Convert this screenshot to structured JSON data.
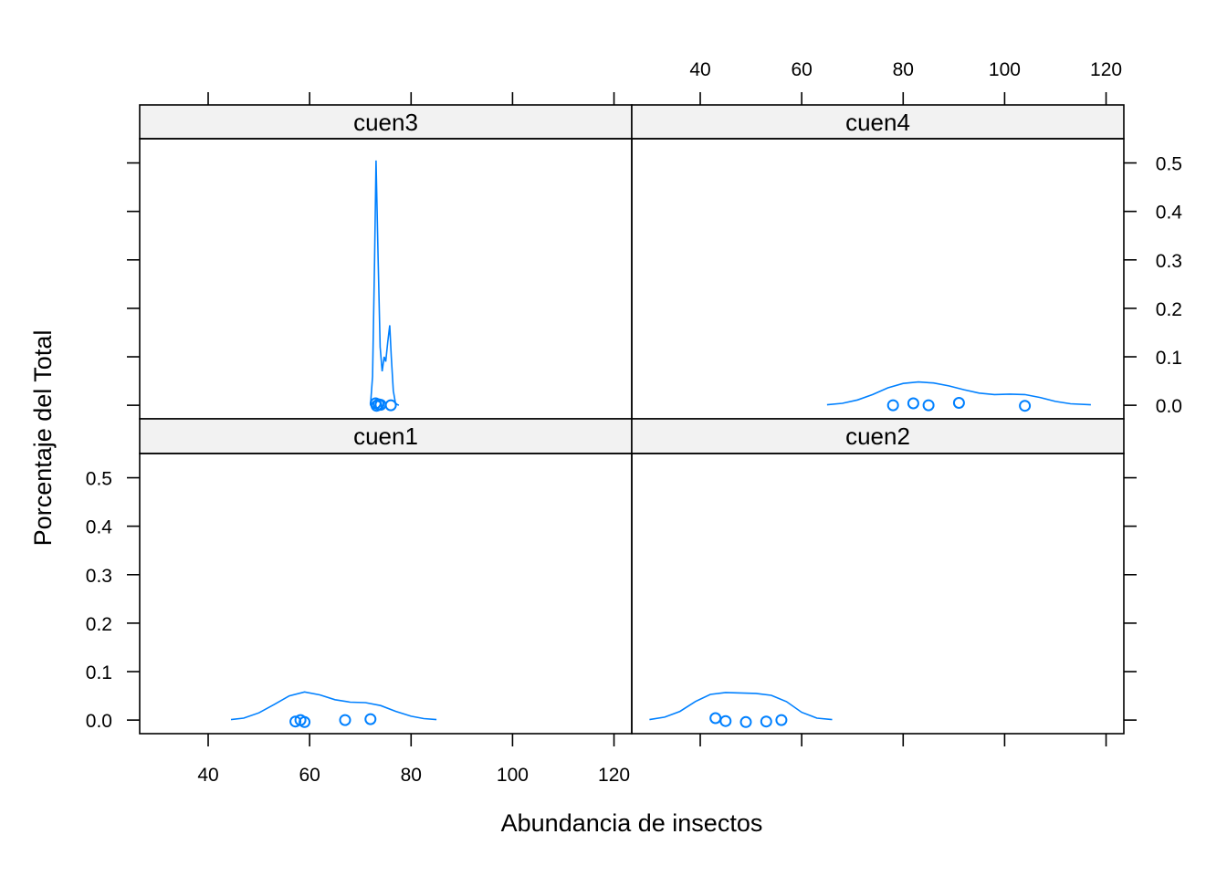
{
  "chart_data": {
    "type": "density",
    "xlabel": "Abundancia de insectos",
    "ylabel": "Porcentaje del Total",
    "xlim": [
      26.5,
      123.5
    ],
    "ylim": [
      -0.028,
      0.55
    ],
    "x_ticks": [
      40,
      60,
      80,
      100,
      120
    ],
    "y_ticks": [
      0.0,
      0.1,
      0.2,
      0.3,
      0.4,
      0.5
    ],
    "line_color": "#0080ff",
    "panels": [
      {
        "name": "cuen3",
        "row": "top",
        "col": "left",
        "density": {
          "x": [
            72.0,
            72.4,
            72.8,
            73.1,
            73.5,
            73.9,
            74.3,
            74.7,
            75.0,
            75.4,
            75.8,
            76.1,
            76.5,
            76.9,
            77.2,
            77.6
          ],
          "y": [
            0.0,
            0.06,
            0.3,
            0.505,
            0.3,
            0.12,
            0.07,
            0.1,
            0.09,
            0.13,
            0.165,
            0.1,
            0.03,
            0.005,
            0.002,
            0.0
          ]
        },
        "points": {
          "x": [
            73.0,
            73.2,
            73.6,
            74.0,
            76.0
          ],
          "y": [
            0.004,
            -0.001,
            0.002,
            0.001,
            0.0
          ]
        }
      },
      {
        "name": "cuen4",
        "row": "top",
        "col": "right",
        "density": {
          "x": [
            65,
            68,
            71,
            74,
            77,
            80,
            83,
            86,
            89,
            92,
            95,
            98,
            101,
            104,
            107,
            110,
            113,
            117
          ],
          "y": [
            0.001,
            0.004,
            0.011,
            0.022,
            0.036,
            0.045,
            0.048,
            0.046,
            0.04,
            0.032,
            0.025,
            0.022,
            0.023,
            0.022,
            0.016,
            0.008,
            0.003,
            0.001
          ]
        },
        "points": {
          "x": [
            78,
            82,
            85,
            91,
            104
          ],
          "y": [
            0.0,
            0.004,
            0.0,
            0.005,
            -0.001
          ]
        }
      },
      {
        "name": "cuen1",
        "row": "bottom",
        "col": "left",
        "density": {
          "x": [
            44.5,
            47,
            50,
            53,
            56,
            59,
            62,
            65,
            68,
            71,
            74,
            77,
            80,
            82.5,
            85
          ],
          "y": [
            0.001,
            0.004,
            0.015,
            0.032,
            0.05,
            0.058,
            0.052,
            0.042,
            0.037,
            0.036,
            0.03,
            0.018,
            0.008,
            0.003,
            0.001
          ]
        },
        "points": {
          "x": [
            57.2,
            58.2,
            59.0,
            67.0,
            72.0
          ],
          "y": [
            -0.003,
            0.0,
            -0.004,
            0.0,
            0.002
          ]
        }
      },
      {
        "name": "cuen2",
        "row": "bottom",
        "col": "right",
        "density": {
          "x": [
            30,
            33,
            36,
            39,
            42,
            45,
            48,
            51,
            54,
            57,
            60,
            63,
            66
          ],
          "y": [
            0.001,
            0.006,
            0.018,
            0.038,
            0.053,
            0.057,
            0.056,
            0.055,
            0.051,
            0.038,
            0.016,
            0.004,
            0.001
          ]
        },
        "points": {
          "x": [
            43.0,
            45.0,
            49.0,
            53.0,
            56.0
          ],
          "y": [
            0.004,
            -0.002,
            -0.004,
            -0.003,
            0.0
          ]
        }
      }
    ]
  }
}
